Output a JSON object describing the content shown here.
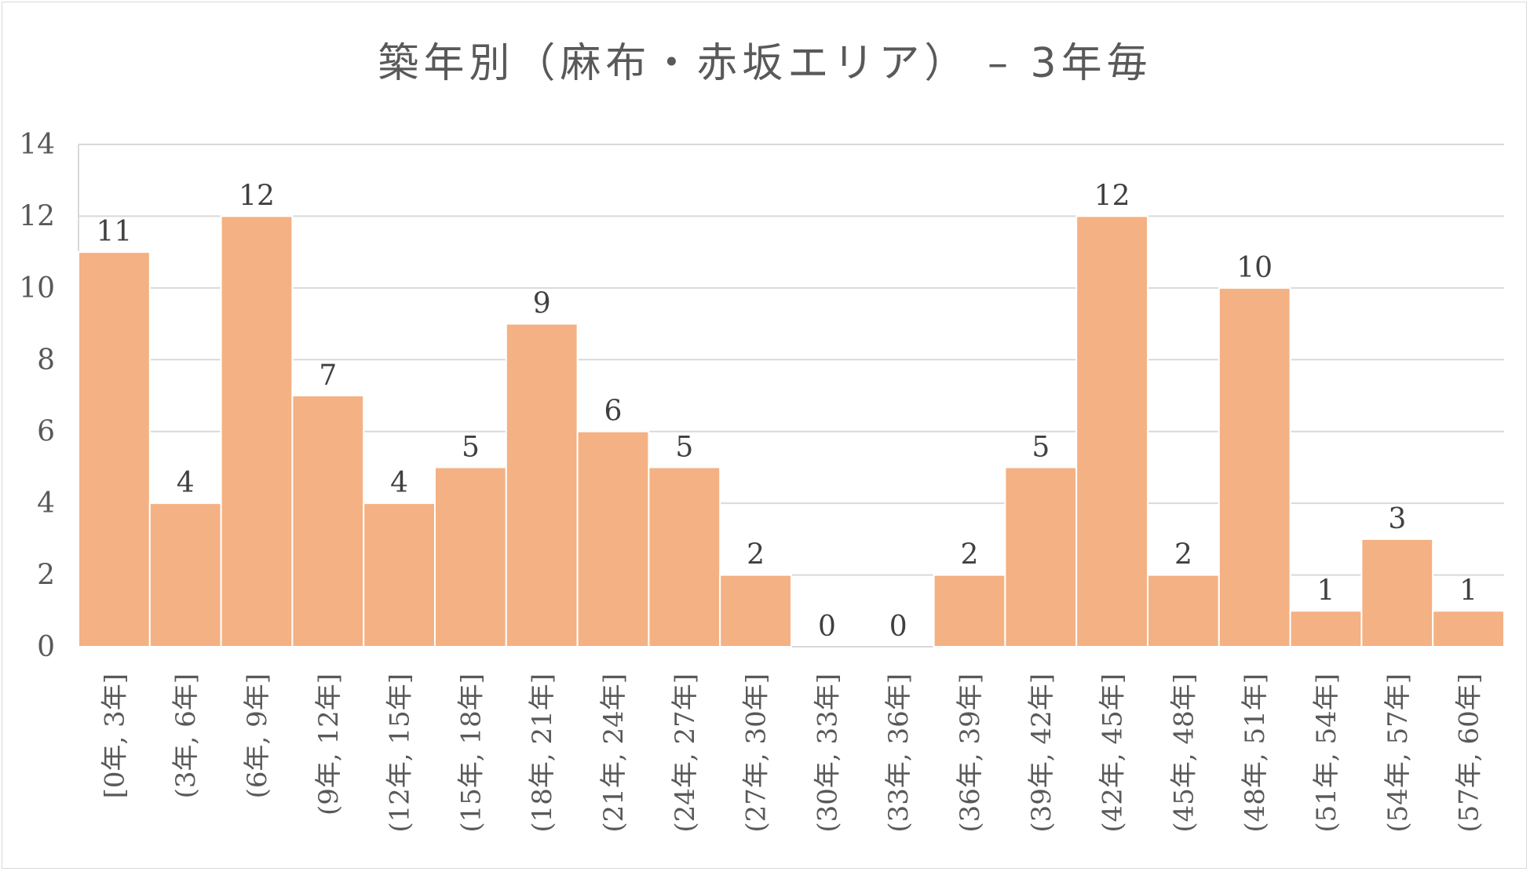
{
  "chart_data": {
    "type": "bar",
    "title": "築年別（麻布・赤坂エリア） – 3年毎",
    "categories": [
      "[0年, 3年]",
      "(3年, 6年]",
      "(6年, 9年]",
      "(9年, 12年]",
      "(12年, 15年]",
      "(15年, 18年]",
      "(18年, 21年]",
      "(21年, 24年]",
      "(24年, 27年]",
      "(27年, 30年]",
      "(30年, 33年]",
      "(33年, 36年]",
      "(36年, 39年]",
      "(39年, 42年]",
      "(42年, 45年]",
      "(45年, 48年]",
      "(48年, 51年]",
      "(51年, 54年]",
      "(54年, 57年]",
      "(57年, 60年]"
    ],
    "values": [
      11,
      4,
      12,
      7,
      4,
      5,
      9,
      6,
      5,
      2,
      0,
      0,
      2,
      5,
      12,
      2,
      10,
      1,
      3,
      1
    ],
    "ylim": [
      0,
      14
    ],
    "yticks": [
      0,
      2,
      4,
      6,
      8,
      10,
      12,
      14
    ],
    "grid": true,
    "data_labels": true,
    "bar_color": "#f4b183",
    "grid_color": "#d9d9d9"
  }
}
